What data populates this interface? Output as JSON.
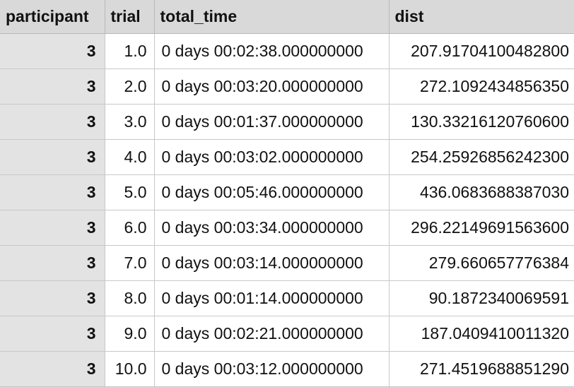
{
  "table": {
    "columns": [
      "participant",
      "trial",
      "total_time",
      "dist"
    ],
    "rows": [
      [
        "3",
        "1.0",
        "0 days 00:02:38.000000000",
        "207.91704100482800"
      ],
      [
        "3",
        "2.0",
        "0 days 00:03:20.000000000",
        "272.1092434856350"
      ],
      [
        "3",
        "3.0",
        "0 days 00:01:37.000000000",
        "130.33216120760600"
      ],
      [
        "3",
        "4.0",
        "0 days 00:03:02.000000000",
        "254.25926856242300"
      ],
      [
        "3",
        "5.0",
        "0 days 00:05:46.000000000",
        "436.0683688387030"
      ],
      [
        "3",
        "6.0",
        "0 days 00:03:34.000000000",
        "296.22149691563600"
      ],
      [
        "3",
        "7.0",
        "0 days 00:03:14.000000000",
        "279.660657776384"
      ],
      [
        "3",
        "8.0",
        "0 days 00:01:14.000000000",
        "90.1872340069591"
      ],
      [
        "3",
        "9.0",
        "0 days 00:02:21.000000000",
        "187.0409410011320"
      ],
      [
        "3",
        "10.0",
        "0 days 00:03:12.000000000",
        "271.4519688851290"
      ]
    ]
  }
}
